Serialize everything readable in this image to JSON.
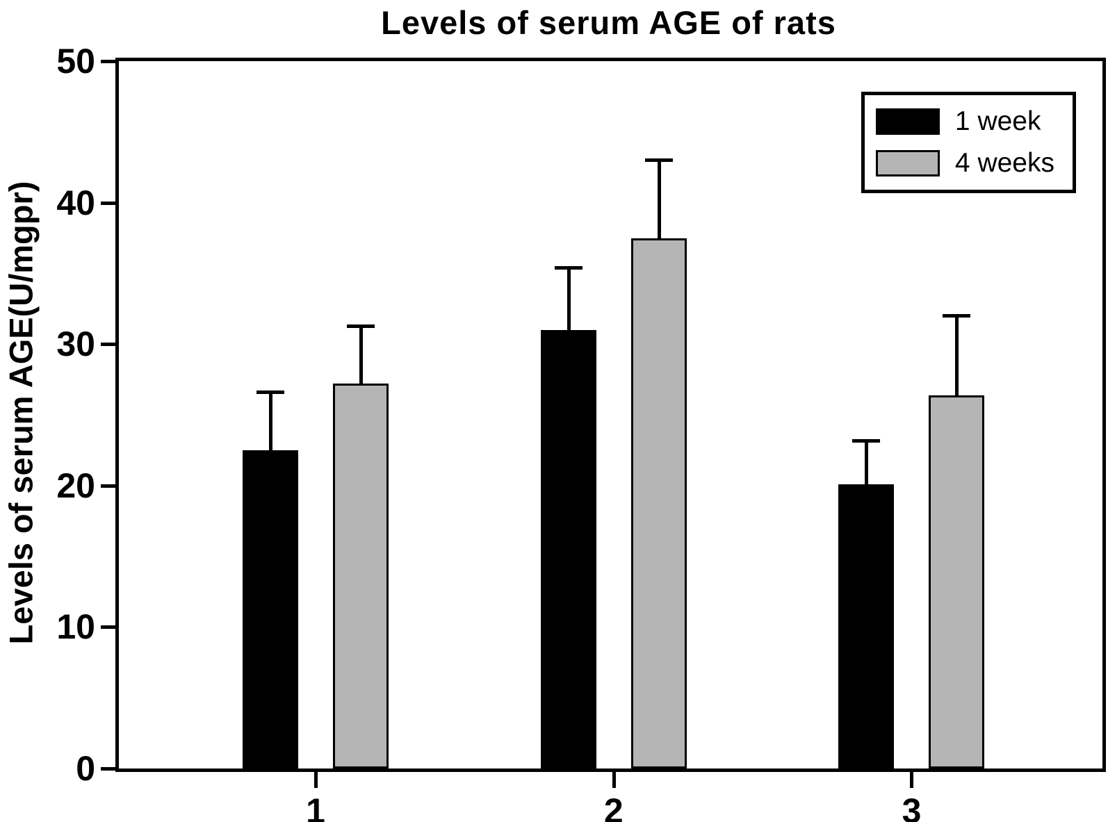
{
  "title": "Levels of serum AGE of rats",
  "colors": {
    "black_series": "#000000",
    "gray_series": "#b5b5b5",
    "axis": "#000000",
    "background": "#ffffff"
  },
  "chart_data": {
    "type": "bar",
    "title": "Levels of serum AGE of rats",
    "xlabel": "",
    "ylabel": "Levels of serum AGE(U/mgpr)",
    "categories": [
      "1",
      "2",
      "3"
    ],
    "series": [
      {
        "name": "1 week",
        "color": "#000000",
        "values": [
          22.5,
          31.0,
          20.1
        ],
        "errors": [
          4.2,
          4.5,
          3.2
        ]
      },
      {
        "name": "4 weeks",
        "color": "#b5b5b5",
        "values": [
          27.2,
          37.5,
          26.4
        ],
        "errors": [
          4.2,
          5.6,
          5.7
        ]
      }
    ],
    "ylim": [
      0,
      50
    ],
    "yticks": [
      0,
      10,
      20,
      30,
      40,
      50
    ],
    "grid": false,
    "error_bars": "upper",
    "legend_position": "top-right"
  }
}
